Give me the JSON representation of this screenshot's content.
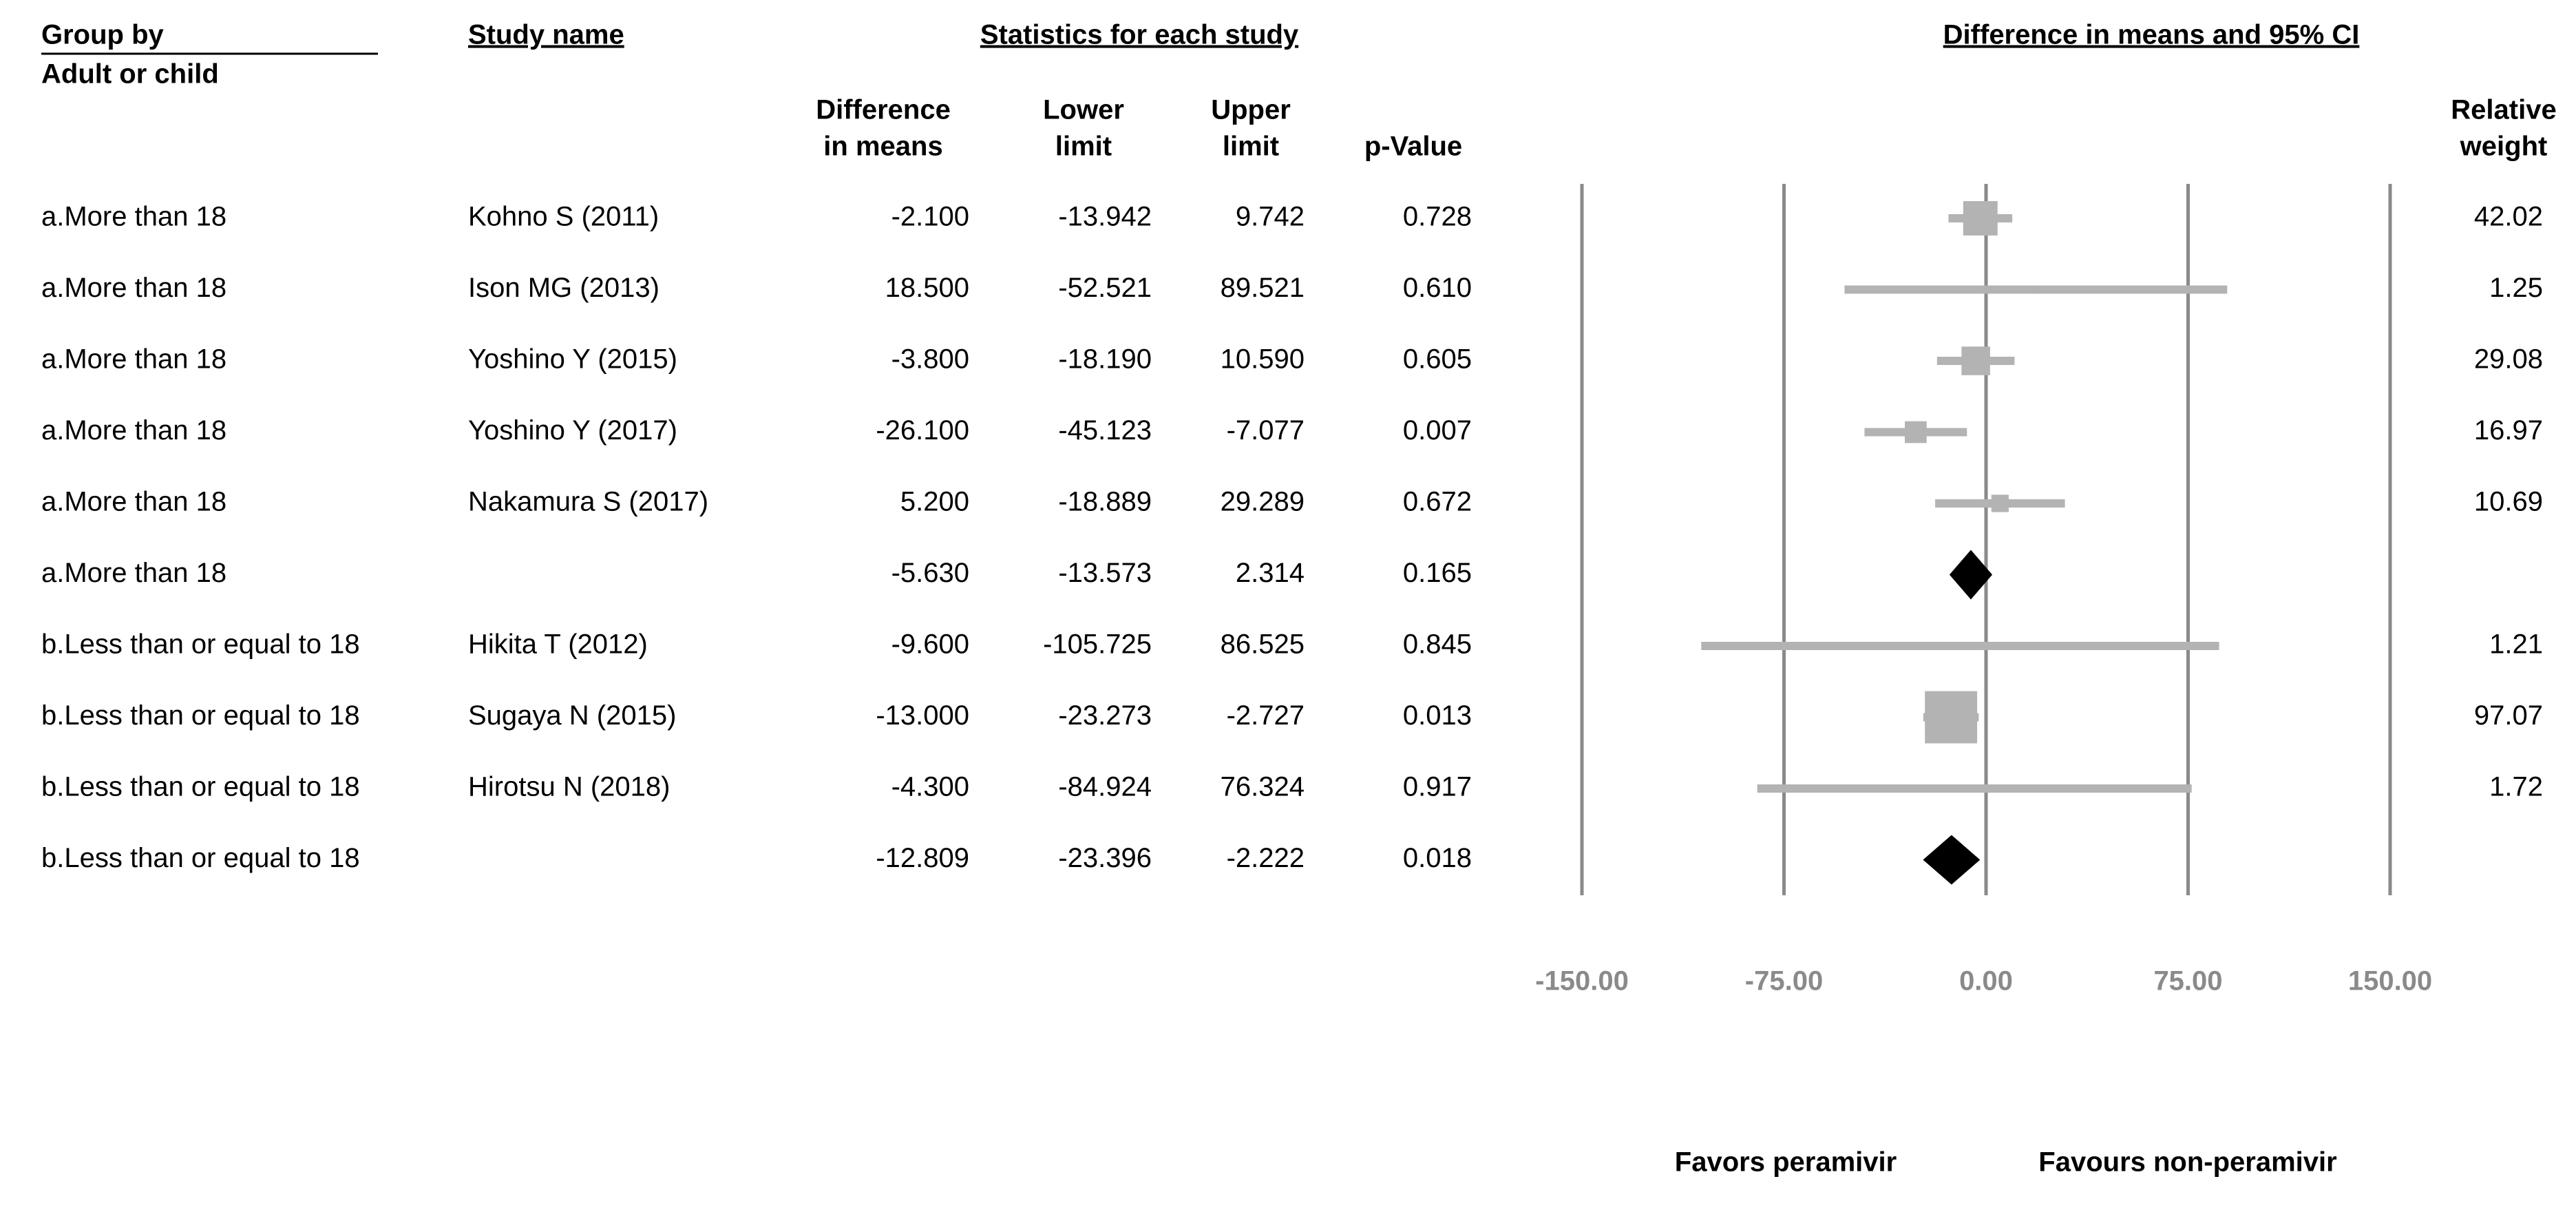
{
  "chart_data": {
    "type": "forest",
    "headers": {
      "group": "Group by",
      "group_sub": "Adult or child",
      "study": "Study name",
      "stats": "Statistics for each study",
      "plot": "Difference in means and 95% CI",
      "diff": [
        "Difference",
        "in means"
      ],
      "lower": [
        "Lower",
        "limit"
      ],
      "upper": [
        "Upper",
        "limit"
      ],
      "p": "p-Value",
      "weight": [
        "Relative",
        "weight"
      ]
    },
    "rows": [
      {
        "group": "a.More than 18",
        "study": "Kohno S (2011)",
        "values": [
          -2.1,
          -13.942,
          9.742,
          0.728
        ],
        "value_labels": [
          "-2.100",
          "-13.942",
          "9.742",
          "0.728"
        ],
        "weight": 42.02
      },
      {
        "group": "a.More than 18",
        "study": "Ison MG (2013)",
        "values": [
          18.5,
          -52.521,
          89.521,
          0.61
        ],
        "value_labels": [
          "18.500",
          "-52.521",
          "89.521",
          "0.610"
        ],
        "weight": 1.25
      },
      {
        "group": "a.More than 18",
        "study": "Yoshino Y (2015)",
        "values": [
          -3.8,
          -18.19,
          10.59,
          0.605
        ],
        "value_labels": [
          "-3.800",
          "-18.190",
          "10.590",
          "0.605"
        ],
        "weight": 29.08
      },
      {
        "group": "a.More than 18",
        "study": "Yoshino Y (2017)",
        "values": [
          -26.1,
          -45.123,
          -7.077,
          0.007
        ],
        "value_labels": [
          "-26.100",
          "-45.123",
          "-7.077",
          "0.007"
        ],
        "weight": 16.97
      },
      {
        "group": "a.More than 18",
        "study": "Nakamura S (2017)",
        "values": [
          5.2,
          -18.889,
          29.289,
          0.672
        ],
        "value_labels": [
          "5.200",
          "-18.889",
          "29.289",
          "0.672"
        ],
        "weight": 10.69
      },
      {
        "group": "a.More than 18",
        "values": [
          -5.63,
          -13.573,
          2.314,
          0.165
        ],
        "value_labels": [
          "-5.630",
          "-13.573",
          "2.314",
          "0.165"
        ]
      },
      {
        "group": "b.Less than or equal to 18",
        "study": "Hikita  T (2012)",
        "values": [
          -9.6,
          -105.725,
          86.525,
          0.845
        ],
        "value_labels": [
          "-9.600",
          "-105.725",
          "86.525",
          "0.845"
        ],
        "weight": 1.21
      },
      {
        "group": "b.Less than or equal to 18",
        "study": "Sugaya N (2015)",
        "values": [
          -13.0,
          -23.273,
          -2.727,
          0.013
        ],
        "value_labels": [
          "-13.000",
          "-23.273",
          "-2.727",
          "0.013"
        ],
        "weight": 97.07
      },
      {
        "group": "b.Less than or equal to 18",
        "study": "Hirotsu N (2018)",
        "values": [
          -4.3,
          -84.924,
          76.324,
          0.917
        ],
        "value_labels": [
          "-4.300",
          "-84.924",
          "76.324",
          "0.917"
        ],
        "weight": 1.72
      },
      {
        "group": "b.Less than or equal to 18",
        "values": [
          -12.809,
          -23.396,
          -2.222,
          0.018
        ],
        "value_labels": [
          "-12.809",
          "-23.396",
          "-2.222",
          "0.018"
        ]
      }
    ],
    "xlim": [
      -150,
      150
    ],
    "xticks": [
      {
        "value": -150,
        "label": "-150.00"
      },
      {
        "value": -75,
        "label": "-75.00"
      },
      {
        "value": 0,
        "label": "0.00"
      },
      {
        "value": 75,
        "label": "75.00"
      },
      {
        "value": 150,
        "label": "150.00"
      }
    ],
    "grid": true,
    "color": "#b3b3b3",
    "summary_color": "#000000",
    "favors": [
      "Favors peramivir",
      "Favours non-peramivir"
    ]
  }
}
